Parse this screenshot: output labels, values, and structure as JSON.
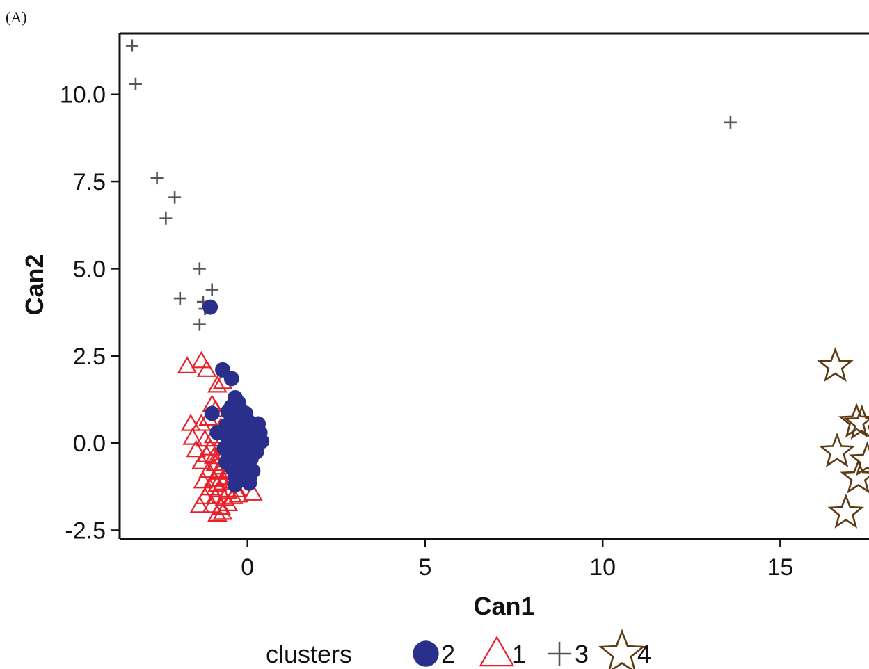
{
  "panel_label": "(A)",
  "colors": {
    "cluster2": "#2B2F8C",
    "cluster1": "#E8202A",
    "cluster3": "#555555",
    "cluster4": "#5C3A12",
    "axis": "#111111"
  },
  "chart_data": {
    "type": "scatter",
    "title": "",
    "xlabel": "Can1",
    "ylabel": "Can2",
    "xlim": [
      -3.6,
      17.5
    ],
    "ylim": [
      -2.75,
      11.75
    ],
    "xticks": [
      0,
      5,
      10,
      15
    ],
    "xtick_labels": [
      "0",
      "5",
      "10",
      "15"
    ],
    "yticks": [
      -2.5,
      0,
      2.5,
      5,
      7.5,
      10
    ],
    "ytick_labels": [
      "-2.5",
      "0.0",
      "2.5",
      "5.0",
      "7.5",
      "10.0"
    ],
    "grid": false,
    "legend": {
      "title": "clusters",
      "placement": "bottom"
    },
    "series": [
      {
        "name": "2",
        "marker": "circle",
        "color": "#2B2F8C",
        "points": [
          [
            -1.05,
            3.9
          ],
          [
            -0.7,
            2.1
          ],
          [
            -0.45,
            1.85
          ],
          [
            -0.35,
            1.3
          ],
          [
            -0.25,
            1.15
          ],
          [
            -0.45,
            1.05
          ],
          [
            -0.2,
            0.95
          ],
          [
            -0.55,
            0.9
          ],
          [
            -0.05,
            0.85
          ],
          [
            -1.0,
            0.85
          ],
          [
            -0.3,
            0.75
          ],
          [
            -0.15,
            0.7
          ],
          [
            0.0,
            0.65
          ],
          [
            -0.4,
            0.6
          ],
          [
            0.3,
            0.55
          ],
          [
            -0.6,
            0.5
          ],
          [
            -0.25,
            0.45
          ],
          [
            0.1,
            0.45
          ],
          [
            -0.1,
            0.35
          ],
          [
            -0.85,
            0.3
          ],
          [
            0.35,
            0.3
          ],
          [
            -0.35,
            0.25
          ],
          [
            0.05,
            0.2
          ],
          [
            -0.55,
            0.15
          ],
          [
            -0.2,
            0.1
          ],
          [
            0.2,
            0.1
          ],
          [
            0.4,
            0.05
          ],
          [
            -0.45,
            0.0
          ],
          [
            -0.1,
            0.0
          ],
          [
            0.15,
            -0.05
          ],
          [
            -0.3,
            -0.1
          ],
          [
            -0.65,
            -0.15
          ],
          [
            0.05,
            -0.15
          ],
          [
            -0.2,
            -0.25
          ],
          [
            0.25,
            -0.25
          ],
          [
            -0.5,
            -0.3
          ],
          [
            -0.05,
            -0.35
          ],
          [
            -0.35,
            -0.4
          ],
          [
            0.1,
            -0.45
          ],
          [
            -0.15,
            -0.5
          ],
          [
            -0.6,
            -0.55
          ],
          [
            -0.3,
            -0.6
          ],
          [
            0.0,
            -0.65
          ],
          [
            -0.45,
            -0.7
          ],
          [
            -0.1,
            -0.75
          ],
          [
            0.15,
            -0.8
          ],
          [
            -0.25,
            -0.85
          ],
          [
            -0.05,
            -0.9
          ],
          [
            -0.35,
            -0.95
          ],
          [
            0.05,
            -1.0
          ],
          [
            -0.15,
            -1.05
          ],
          [
            0.05,
            -1.15
          ],
          [
            -0.35,
            -1.2
          ],
          [
            -0.55,
            -0.05
          ],
          [
            -0.4,
            0.4
          ]
        ]
      },
      {
        "name": "1",
        "marker": "triangle",
        "color": "#E8202A",
        "points": [
          [
            -1.7,
            2.2
          ],
          [
            -1.3,
            2.35
          ],
          [
            -1.15,
            2.1
          ],
          [
            -0.85,
            1.65
          ],
          [
            -0.7,
            1.75
          ],
          [
            -1.0,
            1.1
          ],
          [
            -0.9,
            0.95
          ],
          [
            -1.3,
            0.55
          ],
          [
            -1.6,
            0.55
          ],
          [
            -1.1,
            0.7
          ],
          [
            -0.75,
            0.45
          ],
          [
            -1.55,
            0.15
          ],
          [
            -1.2,
            0.1
          ],
          [
            -0.95,
            0.2
          ],
          [
            -0.7,
            0.1
          ],
          [
            -1.45,
            -0.2
          ],
          [
            -1.05,
            -0.15
          ],
          [
            -0.8,
            -0.3
          ],
          [
            -0.6,
            -0.25
          ],
          [
            -1.3,
            -0.55
          ],
          [
            -0.9,
            -0.6
          ],
          [
            -0.65,
            -0.5
          ],
          [
            -1.1,
            -0.8
          ],
          [
            -0.8,
            -0.85
          ],
          [
            -0.55,
            -0.8
          ],
          [
            -1.25,
            -1.1
          ],
          [
            -0.95,
            -1.05
          ],
          [
            -0.7,
            -1.15
          ],
          [
            -0.45,
            -1.1
          ],
          [
            -1.05,
            -1.3
          ],
          [
            -0.8,
            -1.35
          ],
          [
            -0.55,
            -1.4
          ],
          [
            -0.3,
            -1.35
          ],
          [
            -1.2,
            -1.55
          ],
          [
            -0.9,
            -1.55
          ],
          [
            -0.65,
            -1.6
          ],
          [
            -0.4,
            -1.55
          ],
          [
            -1.35,
            -1.8
          ],
          [
            -1.0,
            -1.8
          ],
          [
            -0.75,
            -1.85
          ],
          [
            -0.85,
            -2.05
          ],
          [
            -0.7,
            -2.0
          ],
          [
            0.15,
            -1.45
          ],
          [
            -0.25,
            -1.5
          ],
          [
            -0.55,
            -1.75
          ],
          [
            -1.15,
            -0.35
          ],
          [
            -0.95,
            -0.4
          ],
          [
            -0.75,
            -0.7
          ],
          [
            -0.85,
            -1.2
          ],
          [
            -0.6,
            -1.0
          ]
        ]
      },
      {
        "name": "3",
        "marker": "plus",
        "color": "#555555",
        "points": [
          [
            -3.25,
            11.4
          ],
          [
            -3.15,
            10.3
          ],
          [
            -2.55,
            7.6
          ],
          [
            -2.05,
            7.05
          ],
          [
            -2.3,
            6.45
          ],
          [
            -1.35,
            5.0
          ],
          [
            -1.0,
            4.4
          ],
          [
            -1.9,
            4.15
          ],
          [
            -1.25,
            4.05
          ],
          [
            -1.2,
            3.85
          ],
          [
            -1.35,
            3.4
          ],
          [
            13.6,
            9.2
          ]
        ]
      },
      {
        "name": "4",
        "marker": "star",
        "color": "#5C3A12",
        "points": [
          [
            16.55,
            2.2
          ],
          [
            17.15,
            0.6
          ],
          [
            17.3,
            0.55
          ],
          [
            16.6,
            -0.25
          ],
          [
            17.45,
            -0.5
          ],
          [
            17.2,
            -1.0
          ],
          [
            16.85,
            -2.0
          ]
        ]
      }
    ]
  }
}
